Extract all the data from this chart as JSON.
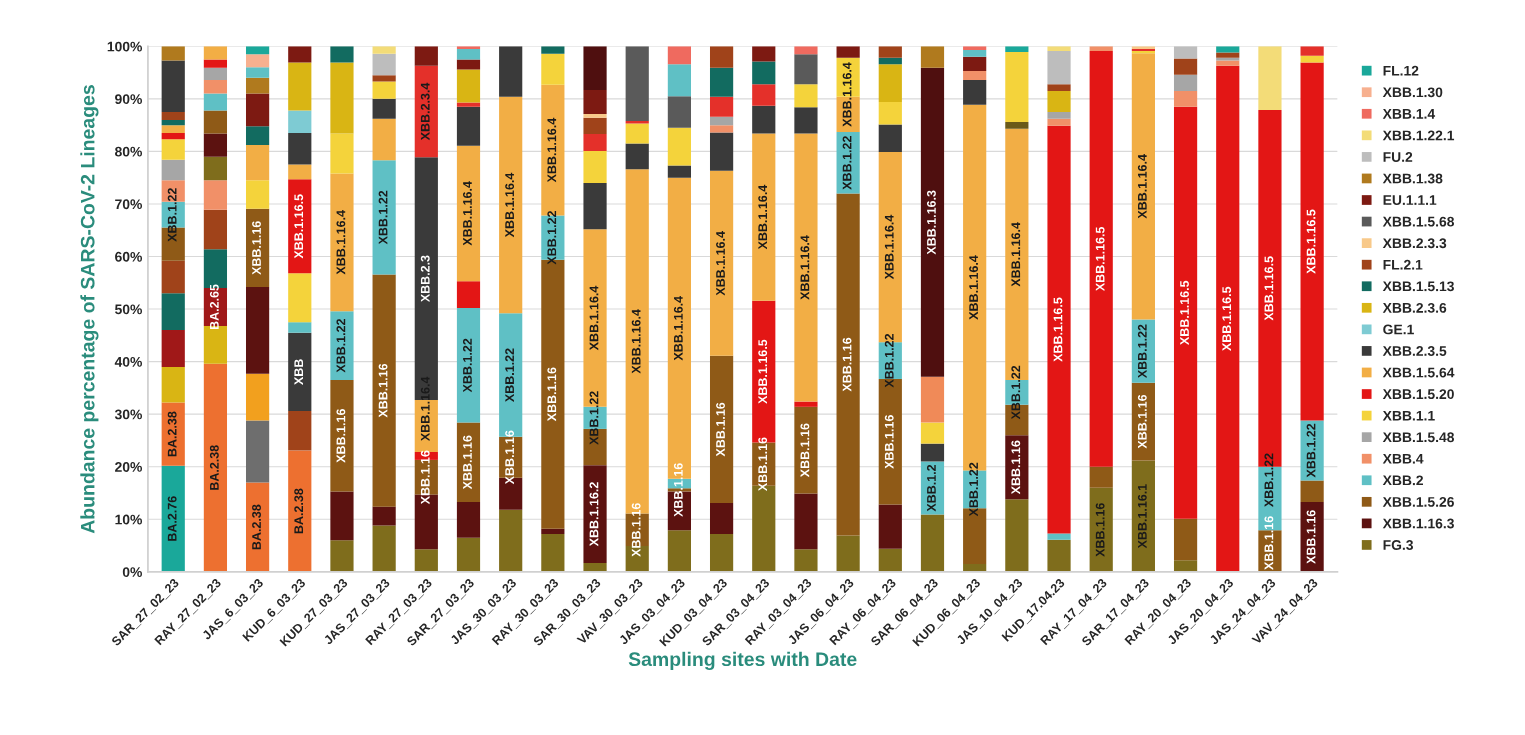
{
  "chart_data": {
    "type": "bar",
    "stacked": true,
    "xlabel": "Sampling sites with Date",
    "ylabel": "Abundance percentage of SARS-CoV-2 Lineages",
    "categories": [
      "SAR_27_02_23",
      "RAY_27_02_23",
      "JAS_6_03_23",
      "KUD_6_03_23",
      "KUD_27_03_23",
      "JAS_27_03_23",
      "RAY_27_03_23",
      "SAR_27_03_23",
      "JAS_30_03_23",
      "RAY_30_03_23",
      "SAR_30_03_23",
      "VAV_30_03_23",
      "JAS_03_04_23",
      "KUD_03_04_23",
      "SAR_03_04_23",
      "RAY_03_04_23",
      "JAS_06_04_23",
      "RAY_06_04_23",
      "SAR_06_04_23",
      "KUD_06_04_23",
      "JAS_10_04_23",
      "KUD_17.04.23",
      "RAY_17_04_23",
      "SAR_17_04_23",
      "RAY_20_04_23",
      "JAS_20_04_23",
      "JAS_24_04_23",
      "VAV_24_04_23"
    ],
    "ylim": [
      0,
      100
    ],
    "yticks": [
      {
        "value": 0,
        "label": "0%"
      },
      {
        "value": 10,
        "label": "10%"
      },
      {
        "value": 20,
        "label": "20%"
      },
      {
        "value": 30,
        "label": "30%"
      },
      {
        "value": 40,
        "label": "40%"
      },
      {
        "value": 50,
        "label": "50%"
      },
      {
        "value": 60,
        "label": "60%"
      },
      {
        "value": 70,
        "label": "70%"
      },
      {
        "value": 80,
        "label": "80%"
      },
      {
        "value": 90,
        "label": "90%"
      },
      {
        "value": 100,
        "label": "100%"
      }
    ],
    "grid": "y",
    "legend": "right",
    "series": [
      {
        "color": "#1aa89a",
        "values": [
          20.2,
          null,
          null,
          null,
          null,
          null,
          null,
          null,
          null,
          null,
          null,
          null,
          null,
          null,
          null,
          null,
          null,
          null,
          null,
          null,
          null,
          null,
          null,
          null,
          null,
          null,
          null,
          null
        ],
        "value_labels": [
          "BA.2.76",
          null,
          null,
          null,
          null,
          null,
          null,
          null,
          null,
          null,
          null,
          null,
          null,
          null,
          null,
          null,
          null,
          null,
          null,
          null,
          null,
          null,
          null,
          null,
          null,
          null,
          null,
          null
        ]
      },
      {
        "color": "#ed7030",
        "values": [
          12.0,
          39.6,
          17.0,
          23.1,
          null,
          null,
          null,
          null,
          null,
          null,
          null,
          null,
          null,
          null,
          null,
          null,
          null,
          null,
          null,
          null,
          null,
          null,
          null,
          null,
          null,
          null,
          null,
          null
        ],
        "value_labels": [
          "BA.2.38",
          "BA.2.38",
          "BA.2.38",
          "BA.2.38",
          null,
          null,
          null,
          null,
          null,
          null,
          null,
          null,
          null,
          null,
          null,
          null,
          null,
          null,
          null,
          null,
          null,
          null,
          null,
          null,
          null,
          null,
          null,
          null
        ]
      },
      {
        "color": "#6e6e6e",
        "values": [
          null,
          null,
          11.8,
          null,
          null,
          null,
          null,
          null,
          null,
          null,
          null,
          null,
          null,
          null,
          null,
          null,
          null,
          null,
          null,
          null,
          null,
          null,
          null,
          null,
          null,
          null,
          null,
          null
        ]
      },
      {
        "color": "#f2a01e",
        "values": [
          null,
          null,
          8.9,
          null,
          null,
          null,
          null,
          null,
          null,
          null,
          null,
          null,
          null,
          null,
          null,
          null,
          null,
          null,
          null,
          null,
          null,
          null,
          null,
          null,
          null,
          null,
          null,
          null
        ]
      },
      {
        "color": "#d9b514",
        "values": [
          6.8,
          7.2,
          null,
          null,
          null,
          null,
          null,
          null,
          null,
          null,
          null,
          null,
          null,
          null,
          null,
          null,
          null,
          null,
          null,
          null,
          null,
          null,
          null,
          null,
          null,
          null,
          null,
          null
        ]
      },
      {
        "color": "#a01818",
        "values": [
          7.0,
          7.2,
          null,
          null,
          null,
          null,
          null,
          null,
          null,
          null,
          null,
          null,
          null,
          null,
          null,
          null,
          null,
          null,
          null,
          null,
          null,
          null,
          null,
          null,
          null,
          null,
          null,
          null
        ],
        "value_labels": [
          null,
          "BA.2.65",
          null,
          null,
          null,
          null,
          null,
          null,
          null,
          null,
          null,
          null,
          null,
          null,
          null,
          null,
          null,
          null,
          null,
          null,
          null,
          null,
          null,
          null,
          null,
          null,
          null,
          null
        ]
      },
      {
        "color": "#126b60",
        "values": [
          7.0,
          7.4,
          null,
          null,
          null,
          null,
          null,
          null,
          null,
          null,
          null,
          null,
          null,
          null,
          null,
          null,
          null,
          null,
          null,
          null,
          null,
          null,
          null,
          null,
          null,
          null,
          null,
          null
        ]
      },
      {
        "color": "#a0431a",
        "values": [
          6.2,
          7.5,
          null,
          7.5,
          null,
          null,
          null,
          null,
          null,
          null,
          null,
          null,
          null,
          null,
          null,
          null,
          null,
          null,
          null,
          null,
          null,
          null,
          null,
          null,
          null,
          null,
          null,
          null
        ]
      },
      {
        "color": "#f19068",
        "values": [
          null,
          5.6,
          null,
          null,
          null,
          null,
          null,
          null,
          null,
          null,
          null,
          null,
          null,
          null,
          null,
          null,
          null,
          null,
          null,
          null,
          null,
          null,
          null,
          null,
          null,
          null,
          null,
          null
        ]
      },
      {
        "name": "FG.3",
        "color": "#7f6d1c",
        "values": [
          null,
          4.5,
          null,
          null,
          6.0,
          8.8,
          4.3,
          6.5,
          11.8,
          7.2,
          1.7,
          4.9,
          7.9,
          7.2,
          16.4,
          4.3,
          6.9,
          4.4,
          10.9,
          1.5,
          13.8,
          6.1,
          16.0,
          21.2,
          2.2,
          null,
          null,
          null
        ],
        "value_labels": [
          null,
          null,
          null,
          null,
          null,
          null,
          null,
          null,
          null,
          null,
          null,
          null,
          null,
          null,
          null,
          null,
          null,
          null,
          null,
          null,
          null,
          null,
          "XBB.1.16",
          "XBB.1.16.1",
          null,
          null,
          null,
          null
        ]
      },
      {
        "name": "XBB.1.16.3",
        "color": "#5c1210",
        "values": [
          null,
          4.4,
          16.5,
          null,
          9.3,
          3.6,
          10.4,
          6.8,
          6.1,
          1.0,
          18.6,
          null,
          7.4,
          5.9,
          null,
          10.6,
          null,
          8.4,
          null,
          null,
          12.2,
          null,
          null,
          null,
          null,
          null,
          null,
          13.3
        ],
        "value_labels": [
          null,
          null,
          null,
          null,
          null,
          null,
          null,
          null,
          null,
          null,
          "XBB.1.16.2",
          null,
          null,
          null,
          null,
          null,
          null,
          null,
          null,
          null,
          "XBB.1.16",
          null,
          null,
          null,
          null,
          null,
          null,
          "XBB.1.16"
        ]
      },
      {
        "name": "XBB.1.5.26",
        "color": "#8f5a17",
        "values": [
          6.3,
          4.4,
          14.9,
          null,
          21.2,
          44.2,
          6.6,
          15.1,
          7.8,
          51.2,
          6.9,
          6.2,
          0.6,
          28.0,
          8.2,
          16.5,
          65.1,
          23.9,
          null,
          10.6,
          5.8,
          null,
          4.0,
          14.8,
          7.9,
          null,
          7.9,
          4.1
        ],
        "value_labels": [
          null,
          null,
          "XBB.1.16",
          null,
          "XBB.1.16",
          "XBB.1.16",
          "XBB.1.16",
          "XBB.1.16",
          "XBB.1.16",
          "XBB.1.16",
          null,
          "XBB.1.16",
          "XBB.1.16",
          "XBB.1.16",
          "XBB.1.16",
          "XBB.1.16",
          "XBB.1.16",
          "XBB.1.16",
          null,
          null,
          null,
          null,
          null,
          "XBB.1.16",
          null,
          null,
          "XBB.1.16",
          null
        ]
      },
      {
        "color": "#3a3a3a",
        "values": [
          null,
          null,
          null,
          14.9,
          null,
          null,
          null,
          null,
          null,
          null,
          null,
          null,
          null,
          null,
          null,
          null,
          null,
          null,
          null,
          null,
          null,
          null,
          null,
          null,
          null,
          null,
          null,
          null
        ],
        "value_labels": [
          null,
          null,
          null,
          "XBB",
          null,
          null,
          null,
          null,
          null,
          null,
          null,
          null,
          null,
          null,
          null,
          null,
          null,
          null,
          null,
          null,
          null,
          null,
          null,
          null,
          null,
          null,
          null,
          null
        ]
      },
      {
        "name": "XBB.2",
        "color": "#5fc0c5",
        "values": [
          4.9,
          3.2,
          null,
          2.0,
          13.1,
          21.7,
          null,
          21.8,
          23.5,
          8.4,
          4.2,
          null,
          1.8,
          null,
          null,
          null,
          11.7,
          7.0,
          10.1,
          7.2,
          4.7,
          1.2,
          null,
          12.0,
          null,
          null,
          12.1,
          11.4
        ],
        "value_labels": [
          "XBB.1.22",
          null,
          null,
          null,
          "XBB.1.22",
          "XBB.1.22",
          null,
          "XBB.1.22",
          "XBB.1.22",
          "XBB.1.22",
          "XBB.1.22",
          null,
          null,
          null,
          null,
          null,
          "XBB.1.22",
          "XBB.1.22",
          "XBB.1.2",
          "XBB.1.22",
          "XBB.1.22",
          null,
          null,
          "XBB.1.22",
          null,
          null,
          "XBB.1.22",
          "XBB.1.22"
        ]
      },
      {
        "color": "#3a3a3a",
        "values": [
          null,
          null,
          null,
          null,
          null,
          null,
          null,
          null,
          null,
          null,
          null,
          null,
          null,
          null,
          null,
          null,
          null,
          null,
          3.4,
          null,
          null,
          null,
          null,
          null,
          null,
          null,
          null,
          null
        ]
      },
      {
        "name": "XBB.4",
        "color": "#f19068",
        "values": [
          4.1,
          2.6,
          null,
          null,
          null,
          null,
          null,
          null,
          null,
          null,
          null,
          null,
          null,
          null,
          null,
          null,
          null,
          null,
          null,
          null,
          null,
          null,
          null,
          null,
          null,
          null,
          null,
          null
        ]
      },
      {
        "name": "XBB.1.5.48",
        "color": "#a6a6a6",
        "values": [
          3.9,
          2.3,
          null,
          null,
          null,
          null,
          null,
          null,
          null,
          null,
          null,
          null,
          null,
          null,
          null,
          null,
          null,
          null,
          null,
          null,
          null,
          null,
          null,
          null,
          null,
          null,
          null,
          null
        ]
      },
      {
        "name": "XBB.1.1",
        "color": "#f4d33b",
        "values": [
          3.9,
          null,
          5.4,
          9.3,
          null,
          null,
          null,
          null,
          null,
          null,
          null,
          null,
          null,
          null,
          null,
          null,
          null,
          null,
          4.0,
          null,
          null,
          null,
          null,
          null,
          null,
          null,
          null,
          null
        ]
      },
      {
        "color": "#f08a58",
        "values": [
          null,
          null,
          null,
          null,
          null,
          null,
          null,
          null,
          null,
          null,
          null,
          null,
          null,
          null,
          null,
          null,
          null,
          null,
          8.7,
          null,
          null,
          null,
          null,
          null,
          null,
          null,
          null,
          null
        ]
      },
      {
        "name": "XBB.1.5.20",
        "color": "#e31615",
        "values": [
          1.2,
          1.6,
          null,
          17.9,
          null,
          null,
          1.5,
          5.1,
          null,
          null,
          null,
          null,
          null,
          null,
          27.0,
          1.0,
          null,
          null,
          null,
          null,
          null,
          77.6,
          79.1,
          null,
          78.4,
          96.3,
          67.9,
          68.1
        ],
        "value_labels": [
          null,
          null,
          null,
          "XBB.1.16.5",
          null,
          null,
          null,
          null,
          null,
          null,
          null,
          null,
          null,
          null,
          "XBB.1.16.5",
          null,
          null,
          null,
          null,
          null,
          null,
          "XBB.1.16.5",
          "XBB.1.16.5",
          null,
          "XBB.1.16.5",
          "XBB.1.16.5",
          "XBB.1.16.5",
          "XBB.1.16.5"
        ]
      },
      {
        "name": "XBB.1.5.64",
        "color": "#f2ae45",
        "values": [
          1.5,
          2.5,
          6.7,
          2.8,
          26.2,
          7.9,
          9.9,
          25.8,
          41.2,
          24.9,
          33.8,
          65.5,
          57.3,
          35.2,
          31.8,
          51.0,
          6.7,
          36.2,
          null,
          69.6,
          47.8,
          null,
          null,
          50.7,
          null,
          null,
          null,
          null
        ],
        "value_labels": [
          null,
          null,
          null,
          null,
          "XBB.1.16.4",
          null,
          "XBB.1.16.4",
          "XBB.1.16.4",
          "XBB.1.16.4",
          "XBB.1.16.4",
          "XBB.1.16.4",
          "XBB.1.16.4",
          "XBB.1.16.4",
          "XBB.1.16.4",
          "XBB.1.16.4",
          "XBB.1.16.4",
          "XBB.1.16.4",
          "XBB.1.16.4",
          null,
          "XBB.1.16.4",
          "XBB.1.16.4",
          null,
          null,
          "XBB.1.16.4",
          null,
          null,
          null,
          null
        ]
      },
      {
        "color": "#6b5a18",
        "values": [
          null,
          null,
          null,
          null,
          null,
          null,
          null,
          null,
          null,
          null,
          null,
          null,
          null,
          null,
          null,
          null,
          null,
          null,
          null,
          null,
          1.3,
          null,
          null,
          null,
          null,
          null,
          null,
          null
        ]
      },
      {
        "name": "XBB.2.3.5",
        "color": "#3a3a3a",
        "values": [
          null,
          null,
          null,
          6.0,
          null,
          3.8,
          46.2,
          7.4,
          9.6,
          null,
          8.8,
          4.9,
          2.3,
          7.3,
          5.3,
          5.0,
          null,
          5.2,
          null,
          4.7,
          null,
          null,
          null,
          null,
          null,
          null,
          null,
          null
        ],
        "value_labels": [
          null,
          null,
          null,
          null,
          null,
          null,
          "XBB.2.3",
          null,
          null,
          null,
          null,
          null,
          null,
          null,
          null,
          null,
          null,
          null,
          null,
          null,
          null,
          null,
          null,
          null,
          null,
          null,
          null,
          null
        ]
      },
      {
        "name": "GE.1",
        "color": "#7ecbd3",
        "values": [
          null,
          null,
          null,
          4.3,
          null,
          null,
          null,
          null,
          null,
          null,
          null,
          null,
          null,
          null,
          null,
          null,
          null,
          null,
          null,
          null,
          null,
          null,
          null,
          null,
          null,
          null,
          null,
          null
        ]
      },
      {
        "color": "#f4d33b",
        "values": [
          null,
          null,
          null,
          null,
          7.6,
          3.3,
          null,
          null,
          null,
          5.9,
          6.1,
          3.8,
          7.2,
          null,
          null,
          4.4,
          7.4,
          4.3,
          null,
          null,
          13.3,
          null,
          null,
          0.4,
          null,
          null,
          null,
          1.3
        ]
      },
      {
        "color": "#f19068",
        "values": [
          null,
          null,
          null,
          null,
          null,
          null,
          null,
          null,
          null,
          null,
          null,
          null,
          null,
          1.4,
          null,
          null,
          null,
          null,
          null,
          1.7,
          null,
          1.3,
          0.9,
          null,
          3.0,
          1.0,
          null,
          null
        ]
      },
      {
        "color": "#a6a6a6",
        "values": [
          null,
          null,
          null,
          null,
          null,
          null,
          null,
          null,
          null,
          null,
          null,
          null,
          null,
          1.6,
          null,
          null,
          null,
          null,
          null,
          null,
          null,
          1.3,
          null,
          null,
          3.1,
          0.5,
          null,
          null
        ]
      },
      {
        "color": "#e4302a",
        "values": [
          null,
          null,
          null,
          null,
          null,
          null,
          17.4,
          0.8,
          null,
          null,
          3.2,
          0.5,
          null,
          3.8,
          4.1,
          null,
          null,
          null,
          null,
          null,
          null,
          null,
          null,
          0.4,
          null,
          null,
          null,
          1.8
        ],
        "value_labels": [
          null,
          null,
          null,
          null,
          null,
          null,
          "XBB.2.3.4",
          null,
          null,
          null,
          null,
          null,
          null,
          null,
          null,
          null,
          null,
          null,
          null,
          null,
          null,
          null,
          null,
          null,
          null,
          null,
          null,
          null
        ]
      },
      {
        "name": "XBB.2.3.6",
        "color": "#d9b514",
        "values": [
          null,
          null,
          null,
          9.1,
          13.5,
          null,
          null,
          6.3,
          null,
          null,
          null,
          null,
          null,
          null,
          null,
          null,
          null,
          7.2,
          null,
          null,
          null,
          4.0,
          null,
          null,
          null,
          null,
          null,
          null
        ]
      },
      {
        "name": "XBB.1.5.13",
        "color": "#126b60",
        "values": [
          1.0,
          null,
          3.6,
          null,
          3.1,
          null,
          null,
          null,
          null,
          1.4,
          null,
          null,
          null,
          5.5,
          4.3,
          null,
          null,
          1.2,
          null,
          null,
          null,
          null,
          null,
          null,
          null,
          null,
          null,
          null
        ]
      },
      {
        "name": "FL.2.1",
        "color": "#a0431a",
        "values": [
          1.5,
          null,
          null,
          null,
          null,
          1.2,
          null,
          null,
          null,
          null,
          3.1,
          null,
          null,
          4.1,
          null,
          null,
          null,
          2.2,
          null,
          null,
          null,
          1.3,
          null,
          null,
          3.1,
          1.0,
          null,
          null
        ]
      },
      {
        "name": "XBB.2.3.3",
        "color": "#f8c98a",
        "values": [
          null,
          null,
          null,
          null,
          null,
          null,
          null,
          null,
          null,
          null,
          0.7,
          null,
          null,
          null,
          null,
          null,
          null,
          null,
          null,
          null,
          null,
          null,
          null,
          0.5,
          null,
          null,
          null,
          null
        ]
      },
      {
        "name": "XBB.1.5.68",
        "color": "#5a5a5a",
        "values": [
          null,
          null,
          null,
          null,
          null,
          null,
          null,
          null,
          null,
          null,
          null,
          14.2,
          6.0,
          null,
          null,
          5.7,
          null,
          null,
          null,
          null,
          null,
          null,
          null,
          null,
          null,
          null,
          null,
          null
        ]
      },
      {
        "name": "EU.1.1.1",
        "color": "#7d1a12",
        "values": [
          null,
          null,
          6.2,
          3.1,
          null,
          null,
          3.7,
          1.9,
          null,
          null,
          4.6,
          null,
          null,
          null,
          2.9,
          null,
          2.2,
          null,
          null,
          2.7,
          null,
          null,
          null,
          null,
          null,
          null,
          null,
          null
        ]
      },
      {
        "color": "#4f0f0f",
        "values": [
          null,
          null,
          null,
          null,
          null,
          null,
          null,
          null,
          null,
          null,
          8.3,
          null,
          null,
          null,
          null,
          null,
          null,
          null,
          58.8,
          null,
          null,
          null,
          null,
          null,
          null,
          null,
          null,
          null
        ],
        "value_labels": [
          null,
          null,
          null,
          null,
          null,
          null,
          null,
          null,
          null,
          null,
          null,
          null,
          null,
          null,
          null,
          null,
          null,
          null,
          "XBB.1.16.3",
          null,
          null,
          null,
          null,
          null,
          null,
          null,
          null,
          null
        ]
      },
      {
        "color": "#3a3a3a",
        "values": [
          9.8,
          null,
          null,
          null,
          null,
          null,
          null,
          null,
          null,
          null,
          null,
          null,
          null,
          null,
          null,
          null,
          null,
          null,
          null,
          null,
          null,
          null,
          null,
          null,
          null,
          null,
          null,
          null
        ]
      },
      {
        "name": "XBB.1.38",
        "color": "#b07a1e",
        "values": [
          2.7,
          null,
          3.0,
          null,
          null,
          null,
          null,
          null,
          null,
          null,
          null,
          null,
          null,
          null,
          null,
          null,
          null,
          null,
          4.1,
          null,
          null,
          null,
          null,
          null,
          null,
          null,
          null,
          null
        ]
      },
      {
        "color": "#5fc0c5",
        "values": [
          null,
          null,
          2.0,
          null,
          null,
          null,
          null,
          2.0,
          null,
          null,
          null,
          null,
          6.1,
          null,
          null,
          null,
          null,
          null,
          null,
          1.3,
          null,
          null,
          null,
          null,
          null,
          null,
          null,
          null
        ]
      },
      {
        "name": "FU.2",
        "color": "#bdbdbd",
        "values": [
          null,
          null,
          null,
          null,
          null,
          4.1,
          null,
          null,
          null,
          null,
          null,
          null,
          null,
          null,
          null,
          null,
          null,
          null,
          null,
          null,
          null,
          6.3,
          null,
          null,
          2.3,
          null,
          null,
          null
        ]
      },
      {
        "name": "XBB.1.22.1",
        "color": "#f3dc78",
        "values": [
          null,
          null,
          null,
          null,
          null,
          1.4,
          null,
          null,
          null,
          null,
          null,
          null,
          null,
          null,
          null,
          null,
          null,
          null,
          null,
          null,
          null,
          0.9,
          null,
          null,
          null,
          null,
          12.1,
          null
        ]
      },
      {
        "name": "XBB.1.4",
        "color": "#ef6a5f",
        "values": [
          null,
          null,
          null,
          null,
          null,
          null,
          null,
          0.5,
          null,
          null,
          null,
          null,
          3.4,
          null,
          null,
          1.5,
          null,
          null,
          null,
          0.7,
          null,
          null,
          null,
          null,
          null,
          null,
          null,
          null
        ]
      },
      {
        "name": "XBB.1.30",
        "color": "#f7b08f",
        "values": [
          null,
          null,
          2.5,
          null,
          null,
          null,
          null,
          null,
          null,
          null,
          null,
          null,
          null,
          null,
          null,
          null,
          null,
          null,
          null,
          null,
          null,
          null,
          null,
          null,
          null,
          null,
          null,
          null
        ]
      },
      {
        "name": "FL.12",
        "color": "#1aa89a",
        "values": [
          null,
          null,
          1.5,
          null,
          null,
          null,
          null,
          null,
          null,
          null,
          null,
          null,
          null,
          null,
          null,
          null,
          null,
          null,
          null,
          null,
          1.1,
          null,
          null,
          null,
          null,
          1.2,
          null,
          null
        ]
      }
    ]
  }
}
